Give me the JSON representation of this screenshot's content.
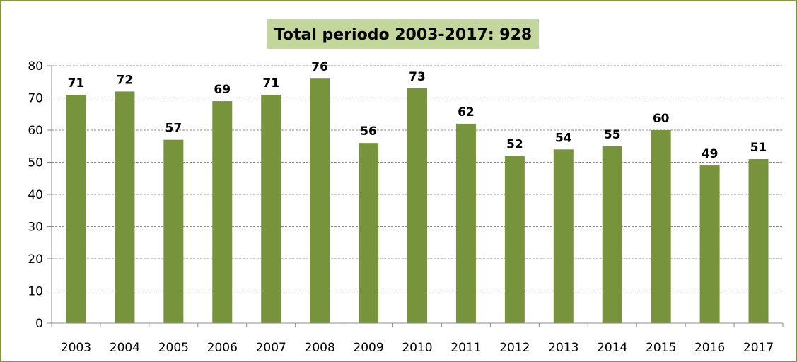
{
  "chart_data": {
    "type": "bar",
    "title": "Total periodo 2003-2017:  928",
    "xlabel": "",
    "ylabel": "",
    "categories": [
      "2003",
      "2004",
      "2005",
      "2006",
      "2007",
      "2008",
      "2009",
      "2010",
      "2011",
      "2012",
      "2013",
      "2014",
      "2015",
      "2016",
      "2017"
    ],
    "values": [
      71,
      72,
      57,
      69,
      71,
      76,
      56,
      73,
      62,
      52,
      54,
      55,
      60,
      49,
      51
    ],
    "ylim": [
      0,
      80
    ],
    "yticks": [
      0,
      10,
      20,
      30,
      40,
      50,
      60,
      70,
      80
    ],
    "grid": true,
    "data_labels": true,
    "bar_color": "#77933c",
    "title_background": "#c3d69b",
    "legend": "none"
  }
}
